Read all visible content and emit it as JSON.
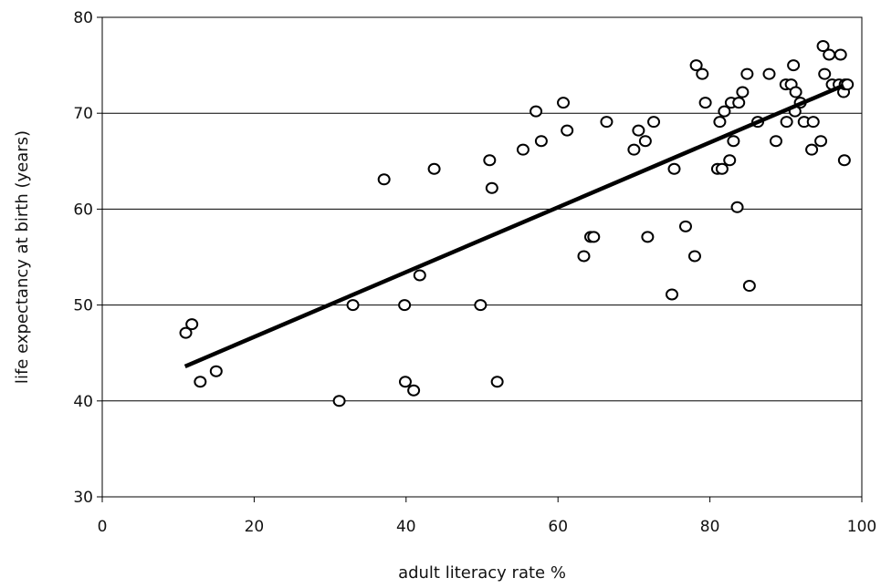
{
  "chart_data": {
    "type": "scatter",
    "xlabel": "adult literacy rate %",
    "ylabel": "life expectancy at birth (years)",
    "xlim": [
      0,
      100
    ],
    "ylim": [
      30,
      80
    ],
    "x_ticks": [
      0,
      20,
      40,
      60,
      80,
      100
    ],
    "y_ticks": [
      30,
      40,
      50,
      60,
      70,
      80
    ],
    "grid": "horizontal",
    "legend": "none",
    "colors": {
      "marker": "#000000",
      "trendline": "#000000",
      "grid": "#000000"
    },
    "points": [
      {
        "x": 11.0,
        "y": 47.1
      },
      {
        "x": 11.8,
        "y": 48.0
      },
      {
        "x": 12.9,
        "y": 42.0
      },
      {
        "x": 15.0,
        "y": 43.1
      },
      {
        "x": 31.2,
        "y": 40.0
      },
      {
        "x": 33.0,
        "y": 50.0
      },
      {
        "x": 37.1,
        "y": 63.1
      },
      {
        "x": 39.8,
        "y": 50.0
      },
      {
        "x": 39.9,
        "y": 42.0
      },
      {
        "x": 41.0,
        "y": 41.1
      },
      {
        "x": 41.8,
        "y": 53.1
      },
      {
        "x": 43.7,
        "y": 64.2
      },
      {
        "x": 49.8,
        "y": 50.0
      },
      {
        "x": 51.0,
        "y": 65.1
      },
      {
        "x": 51.3,
        "y": 62.2
      },
      {
        "x": 52.0,
        "y": 42.0
      },
      {
        "x": 55.4,
        "y": 66.2
      },
      {
        "x": 57.1,
        "y": 70.2
      },
      {
        "x": 57.8,
        "y": 67.1
      },
      {
        "x": 60.7,
        "y": 71.1
      },
      {
        "x": 61.2,
        "y": 68.2
      },
      {
        "x": 63.4,
        "y": 55.1
      },
      {
        "x": 64.3,
        "y": 57.1
      },
      {
        "x": 64.7,
        "y": 57.1
      },
      {
        "x": 66.4,
        "y": 69.1
      },
      {
        "x": 70.0,
        "y": 66.2
      },
      {
        "x": 70.6,
        "y": 68.2
      },
      {
        "x": 71.5,
        "y": 67.1
      },
      {
        "x": 71.8,
        "y": 57.1
      },
      {
        "x": 72.6,
        "y": 69.1
      },
      {
        "x": 75.0,
        "y": 51.1
      },
      {
        "x": 75.3,
        "y": 64.2
      },
      {
        "x": 76.8,
        "y": 58.2
      },
      {
        "x": 78.0,
        "y": 55.1
      },
      {
        "x": 78.2,
        "y": 75.0
      },
      {
        "x": 79.0,
        "y": 74.1
      },
      {
        "x": 79.4,
        "y": 71.1
      },
      {
        "x": 81.0,
        "y": 64.2
      },
      {
        "x": 81.3,
        "y": 69.1
      },
      {
        "x": 81.6,
        "y": 64.2
      },
      {
        "x": 81.9,
        "y": 70.2
      },
      {
        "x": 82.6,
        "y": 65.1
      },
      {
        "x": 82.8,
        "y": 71.1
      },
      {
        "x": 83.1,
        "y": 67.1
      },
      {
        "x": 83.6,
        "y": 60.2
      },
      {
        "x": 83.8,
        "y": 71.1
      },
      {
        "x": 84.3,
        "y": 72.2
      },
      {
        "x": 84.9,
        "y": 74.1
      },
      {
        "x": 85.2,
        "y": 52.0
      },
      {
        "x": 86.3,
        "y": 69.1
      },
      {
        "x": 87.8,
        "y": 74.1
      },
      {
        "x": 88.7,
        "y": 67.1
      },
      {
        "x": 90.0,
        "y": 73.0
      },
      {
        "x": 90.1,
        "y": 69.1
      },
      {
        "x": 90.7,
        "y": 73.0
      },
      {
        "x": 91.0,
        "y": 75.0
      },
      {
        "x": 91.2,
        "y": 70.2
      },
      {
        "x": 91.3,
        "y": 72.2
      },
      {
        "x": 91.9,
        "y": 71.1
      },
      {
        "x": 92.4,
        "y": 69.1
      },
      {
        "x": 93.4,
        "y": 66.2
      },
      {
        "x": 93.6,
        "y": 69.1
      },
      {
        "x": 94.6,
        "y": 67.1
      },
      {
        "x": 94.9,
        "y": 77.0
      },
      {
        "x": 95.1,
        "y": 74.1
      },
      {
        "x": 95.7,
        "y": 76.1
      },
      {
        "x": 96.1,
        "y": 73.0
      },
      {
        "x": 97.0,
        "y": 73.0
      },
      {
        "x": 97.2,
        "y": 76.1
      },
      {
        "x": 97.6,
        "y": 72.2
      },
      {
        "x": 97.7,
        "y": 65.1
      },
      {
        "x": 97.8,
        "y": 73.0
      },
      {
        "x": 98.1,
        "y": 73.0
      }
    ],
    "trendline": {
      "x1": 10.9,
      "y1": 43.6,
      "x2": 97.6,
      "y2": 72.9
    }
  }
}
